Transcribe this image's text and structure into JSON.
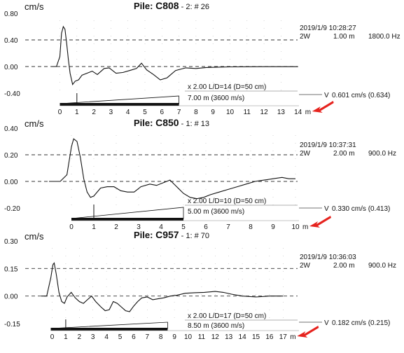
{
  "chart_data": [
    {
      "type": "line",
      "unit": "cm/s",
      "title_prefix": "Pile:",
      "pile": "C808",
      "sub": "- 2: # 26",
      "datetime": "2019/1/9 10:28:27",
      "mode": "2W",
      "length_label": "1.00 m",
      "freq": "1800.0 Hz",
      "y_ticks": [
        "0.80",
        "0.40",
        "0.00",
        "-0.40"
      ],
      "y_values": [
        0.8,
        0.4,
        0.0,
        -0.4
      ],
      "ylim": [
        -0.4,
        0.8
      ],
      "dashed_at": [
        0.4,
        0.0
      ],
      "x_ticks": [
        "0",
        "1",
        "2",
        "3",
        "4",
        "5",
        "6",
        "7",
        "8",
        "9",
        "10",
        "11",
        "12",
        "13",
        "14"
      ],
      "x_unit": "m",
      "xlim": [
        -0.5,
        14
      ],
      "pile_length_m": 7,
      "marker_m": 1,
      "info1": "x 2.00  L/D=14 (D=50 cm)",
      "info2": "7.00 m (3600 m/s)",
      "v_label": "V",
      "v_value": "0.601 cm/s  (0.634)",
      "series": [
        {
          "values": [
            [
              -0.5,
              0.0
            ],
            [
              -0.2,
              0.0
            ],
            [
              0.0,
              0.15
            ],
            [
              0.1,
              0.5
            ],
            [
              0.2,
              0.6
            ],
            [
              0.3,
              0.56
            ],
            [
              0.4,
              0.35
            ],
            [
              0.5,
              0.1
            ],
            [
              0.6,
              -0.1
            ],
            [
              0.75,
              -0.27
            ],
            [
              0.9,
              -0.22
            ],
            [
              1.1,
              -0.2
            ],
            [
              1.3,
              -0.13
            ],
            [
              1.6,
              -0.1
            ],
            [
              1.9,
              -0.07
            ],
            [
              2.2,
              -0.12
            ],
            [
              2.6,
              -0.03
            ],
            [
              2.9,
              -0.02
            ],
            [
              3.3,
              -0.1
            ],
            [
              3.7,
              -0.09
            ],
            [
              4.1,
              -0.06
            ],
            [
              4.5,
              -0.03
            ],
            [
              4.8,
              0.05
            ],
            [
              5.1,
              -0.05
            ],
            [
              5.5,
              -0.12
            ],
            [
              5.9,
              -0.2
            ],
            [
              6.3,
              -0.17
            ],
            [
              6.8,
              -0.06
            ],
            [
              7.4,
              -0.02
            ],
            [
              8.0,
              -0.03
            ],
            [
              8.6,
              -0.015
            ],
            [
              9.2,
              -0.01
            ],
            [
              10.0,
              -0.005
            ],
            [
              11.0,
              -0.003
            ],
            [
              12.0,
              -0.002
            ],
            [
              13.0,
              -0.002
            ],
            [
              14.0,
              -0.002
            ]
          ]
        }
      ]
    },
    {
      "type": "line",
      "unit": "cm/s",
      "title_prefix": "Pile:",
      "pile": "C850",
      "sub": "- 1: # 13",
      "datetime": "2019/1/9 10:37:31",
      "mode": "2W",
      "length_label": "2.00 m",
      "freq": "900.0 Hz",
      "y_ticks": [
        "0.40",
        "0.20",
        "0.00",
        "-0.20"
      ],
      "y_values": [
        0.4,
        0.2,
        0.0,
        -0.2
      ],
      "ylim": [
        -0.2,
        0.4
      ],
      "dashed_at": [
        0.2,
        0.0
      ],
      "x_ticks": [
        "0",
        "1",
        "2",
        "3",
        "4",
        "5",
        "6",
        "7",
        "8",
        "9",
        "10"
      ],
      "x_unit": "m",
      "xlim": [
        -1,
        10
      ],
      "pile_length_m": 5,
      "marker_m": 1,
      "info1": "x 2.00  L/D=10 (D=50 cm)",
      "info2": "5.00 m (3600 m/s)",
      "v_label": "V",
      "v_value": "0.330 cm/s  (0.413)",
      "series": [
        {
          "values": [
            [
              -1.0,
              0.0
            ],
            [
              -0.5,
              0.0
            ],
            [
              -0.2,
              0.05
            ],
            [
              0.0,
              0.26
            ],
            [
              0.1,
              0.32
            ],
            [
              0.25,
              0.3
            ],
            [
              0.4,
              0.18
            ],
            [
              0.55,
              0.02
            ],
            [
              0.7,
              -0.08
            ],
            [
              0.85,
              -0.12
            ],
            [
              1.0,
              -0.11
            ],
            [
              1.3,
              -0.05
            ],
            [
              1.6,
              -0.04
            ],
            [
              1.9,
              -0.04
            ],
            [
              2.2,
              -0.07
            ],
            [
              2.5,
              -0.08
            ],
            [
              2.8,
              -0.08
            ],
            [
              3.1,
              -0.04
            ],
            [
              3.5,
              -0.02
            ],
            [
              3.8,
              -0.03
            ],
            [
              4.1,
              -0.01
            ],
            [
              4.4,
              0.01
            ],
            [
              4.7,
              -0.04
            ],
            [
              5.0,
              -0.09
            ],
            [
              5.3,
              -0.12
            ],
            [
              5.6,
              -0.13
            ],
            [
              5.9,
              -0.12
            ],
            [
              6.2,
              -0.1
            ],
            [
              6.6,
              -0.08
            ],
            [
              7.0,
              -0.06
            ],
            [
              7.4,
              -0.04
            ],
            [
              7.8,
              -0.02
            ],
            [
              8.2,
              0.0
            ],
            [
              8.6,
              0.01
            ],
            [
              9.0,
              0.02
            ],
            [
              9.4,
              0.03
            ],
            [
              9.7,
              0.02
            ],
            [
              10.0,
              0.02
            ]
          ]
        }
      ]
    },
    {
      "type": "line",
      "unit": "cm/s",
      "title_prefix": "Pile:",
      "pile": "C957",
      "sub": "- 1: # 70",
      "datetime": "2019/1/9 10:36:03",
      "mode": "2W",
      "length_label": "2.00 m",
      "freq": "900.0 Hz",
      "y_ticks": [
        "0.30",
        "0.15",
        "0.00",
        "-0.15"
      ],
      "y_values": [
        0.3,
        0.15,
        0.0,
        -0.15
      ],
      "ylim": [
        -0.15,
        0.3
      ],
      "dashed_at": [
        0.15,
        0.0
      ],
      "x_ticks": [
        "0",
        "1",
        "2",
        "3",
        "4",
        "5",
        "6",
        "7",
        "8",
        "9",
        "10",
        "11",
        "12",
        "13",
        "14",
        "15",
        "16",
        "17"
      ],
      "x_unit": "m",
      "xlim": [
        -0.8,
        17
      ],
      "pile_length_m": 8.5,
      "marker_m": 1,
      "info1": "x 2.00  L/D=17 (D=50 cm)",
      "info2": "8.50 m (3600 m/s)",
      "v_label": "V",
      "v_value": "0.182 cm/s  (0.215)",
      "series": [
        {
          "values": [
            [
              -0.8,
              0.0
            ],
            [
              -0.4,
              0.0
            ],
            [
              -0.1,
              0.1
            ],
            [
              0.05,
              0.17
            ],
            [
              0.15,
              0.18
            ],
            [
              0.3,
              0.12
            ],
            [
              0.5,
              0.02
            ],
            [
              0.7,
              -0.03
            ],
            [
              0.9,
              -0.04
            ],
            [
              1.1,
              -0.005
            ],
            [
              1.4,
              0.02
            ],
            [
              1.7,
              -0.01
            ],
            [
              2.0,
              -0.03
            ],
            [
              2.3,
              -0.04
            ],
            [
              2.6,
              -0.02
            ],
            [
              2.9,
              0.0
            ],
            [
              3.2,
              -0.03
            ],
            [
              3.6,
              -0.06
            ],
            [
              3.9,
              -0.08
            ],
            [
              4.2,
              -0.075
            ],
            [
              4.5,
              -0.03
            ],
            [
              4.8,
              -0.04
            ],
            [
              5.1,
              -0.06
            ],
            [
              5.4,
              -0.08
            ],
            [
              5.7,
              -0.085
            ],
            [
              6.0,
              -0.055
            ],
            [
              6.3,
              -0.03
            ],
            [
              6.6,
              -0.01
            ],
            [
              7.0,
              -0.005
            ],
            [
              7.4,
              -0.02
            ],
            [
              7.8,
              -0.015
            ],
            [
              8.2,
              -0.01
            ],
            [
              8.7,
              0.0
            ],
            [
              9.2,
              0.005
            ],
            [
              9.8,
              0.015
            ],
            [
              10.5,
              0.018
            ],
            [
              11.2,
              0.02
            ],
            [
              12.0,
              0.025
            ],
            [
              12.6,
              0.02
            ],
            [
              13.2,
              0.01
            ],
            [
              14.0,
              0.0
            ],
            [
              15.0,
              -0.005
            ],
            [
              16.0,
              0.0
            ],
            [
              17.0,
              0.0
            ]
          ]
        }
      ]
    }
  ],
  "colors": {
    "arrow": "#e6231e",
    "ink": "#111111",
    "grid": "#444444"
  }
}
